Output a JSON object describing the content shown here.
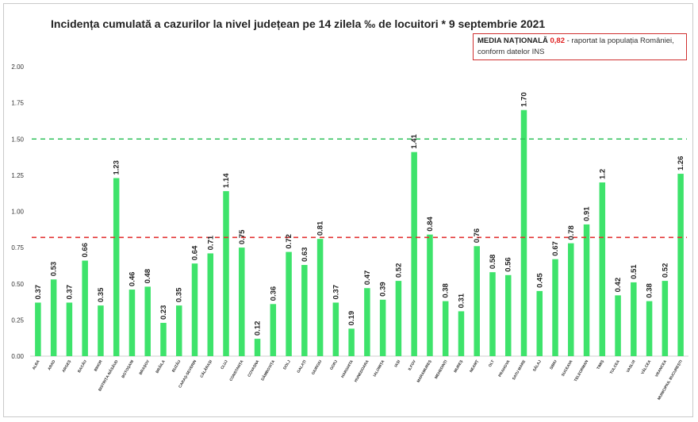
{
  "title": "Incidența cumulată a cazurilor la nivel județean pe 14 zilela ‰ de locuitori * 9 septembrie 2021",
  "note": {
    "label": "MEDIA NAȚIONALĂ",
    "value": "0,82",
    "text1": "- raportat la populația României,",
    "text2": "conform datelor INS"
  },
  "chart_data": {
    "type": "bar",
    "title": "Incidența cumulată a cazurilor la nivel județean pe 14 zilela ‰ de locuitori * 9 septembrie 2021",
    "xlabel": "",
    "ylabel": "",
    "ylim": [
      0,
      2.0
    ],
    "yticks": [
      "0.00",
      "0.25",
      "0.50",
      "0.75",
      "1.00",
      "1.25",
      "1.50",
      "1.75",
      "2.00"
    ],
    "grid": false,
    "bar_color": "#3ee36b",
    "categories": [
      "ALBA",
      "ARAD",
      "ARGEȘ",
      "BACĂU",
      "BIHOR",
      "BISTRIȚA-NĂSĂUD",
      "BOTOȘANI",
      "BRAȘOV",
      "BRĂILA",
      "BUZĂU",
      "CARAȘ-SEVERIN",
      "CĂLĂRAȘI",
      "CLUJ",
      "CONSTANȚA",
      "COVASNA",
      "DÂMBOVIȚA",
      "DOLJ",
      "GALAȚI",
      "GIURGIU",
      "GORJ",
      "HARGHITA",
      "HUNEDOARA",
      "IALOMIȚA",
      "IAȘI",
      "ILFOV",
      "MARAMUREȘ",
      "MEHEDINȚI",
      "MUREȘ",
      "NEAMȚ",
      "OLT",
      "PRAHOVA",
      "SATU MARE",
      "SĂLAJ",
      "SIBIU",
      "SUCEAVA",
      "TELEORMAN",
      "TIMIȘ",
      "TULCEA",
      "VASLUI",
      "VÂLCEA",
      "VRANCEA",
      "MUNICIPIUL BUCUREȘTI"
    ],
    "values": [
      0.37,
      0.53,
      0.37,
      0.66,
      0.35,
      1.23,
      0.46,
      0.48,
      0.23,
      0.35,
      0.64,
      0.71,
      1.14,
      0.75,
      0.12,
      0.36,
      0.72,
      0.63,
      0.81,
      0.37,
      0.19,
      0.47,
      0.39,
      0.52,
      1.41,
      0.84,
      0.38,
      0.31,
      0.76,
      0.58,
      0.56,
      1.7,
      0.45,
      0.67,
      0.78,
      0.91,
      1.2,
      0.42,
      0.51,
      0.38,
      0.52,
      1.26
    ],
    "labels": [
      "0.37",
      "0.53",
      "0.37",
      "0.66",
      "0.35",
      "1.23",
      "0.46",
      "0.48",
      "0.23",
      "0.35",
      "0.64",
      "0.71",
      "1.14",
      "0.75",
      "0.12",
      "0.36",
      "0.72",
      "0.63",
      "0.81",
      "0.37",
      "0.19",
      "0.47",
      "0.39",
      "0.52",
      "1.41",
      "0.84",
      "0.38",
      "0.31",
      "0.76",
      "0.58",
      "0.56",
      "1.70",
      "0.45",
      "0.67",
      "0.78",
      "0.91",
      "1.2",
      "0.42",
      "0.51",
      "0.38",
      "0.52",
      "1.26"
    ],
    "reference_lines": [
      {
        "value": 1.5,
        "color": "#2fc25a",
        "style": "dashed"
      },
      {
        "value": 0.82,
        "color": "#e23030",
        "style": "dashed"
      }
    ]
  }
}
